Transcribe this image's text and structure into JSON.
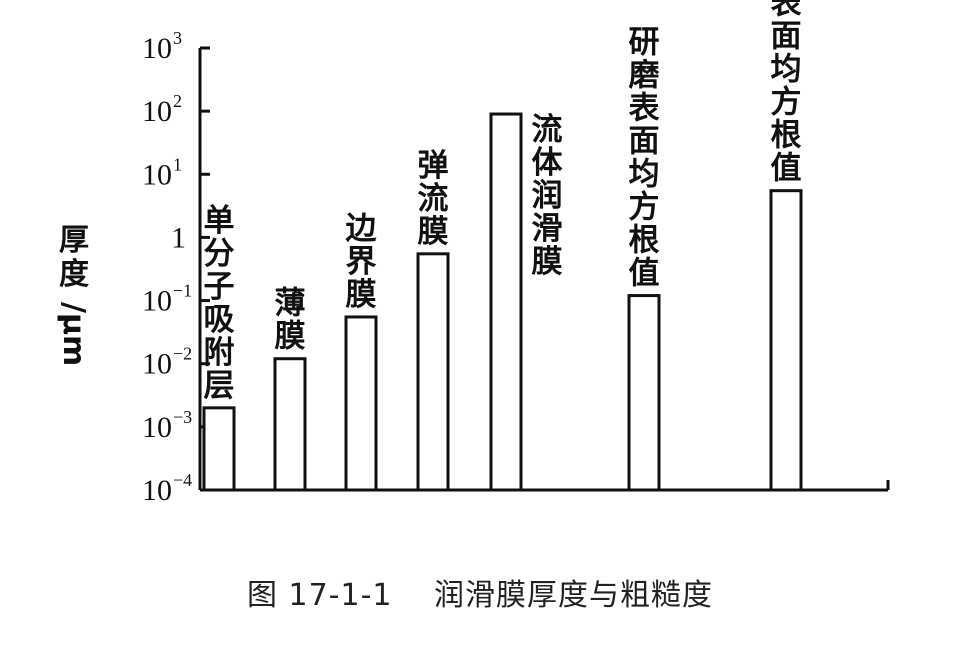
{
  "chart_data": {
    "type": "bar",
    "title": "",
    "ylabel": "厚度/μm",
    "xlabel": "",
    "yscale": "log",
    "ylim": [
      0.0001,
      1000
    ],
    "y_ticks": [
      {
        "base": "10",
        "exp": "3"
      },
      {
        "base": "10",
        "exp": "2"
      },
      {
        "base": "10",
        "exp": "1"
      },
      {
        "base": "1",
        "exp": ""
      },
      {
        "base": "10",
        "exp": "−1"
      },
      {
        "base": "10",
        "exp": "−2"
      },
      {
        "base": "10",
        "exp": "−3"
      },
      {
        "base": "10",
        "exp": "−4"
      }
    ],
    "categories": [
      "单分子吸附层",
      "薄膜",
      "边界膜",
      "弹流膜",
      "流体润滑膜",
      "研磨表面均方根值",
      "粗加工表面均方根值"
    ],
    "values": [
      0.002,
      0.012,
      0.055,
      0.55,
      90,
      0.12,
      5.5
    ],
    "grid": false,
    "legend": "none"
  },
  "caption": "图 17-1-1　 润滑膜厚度与粗糙度"
}
